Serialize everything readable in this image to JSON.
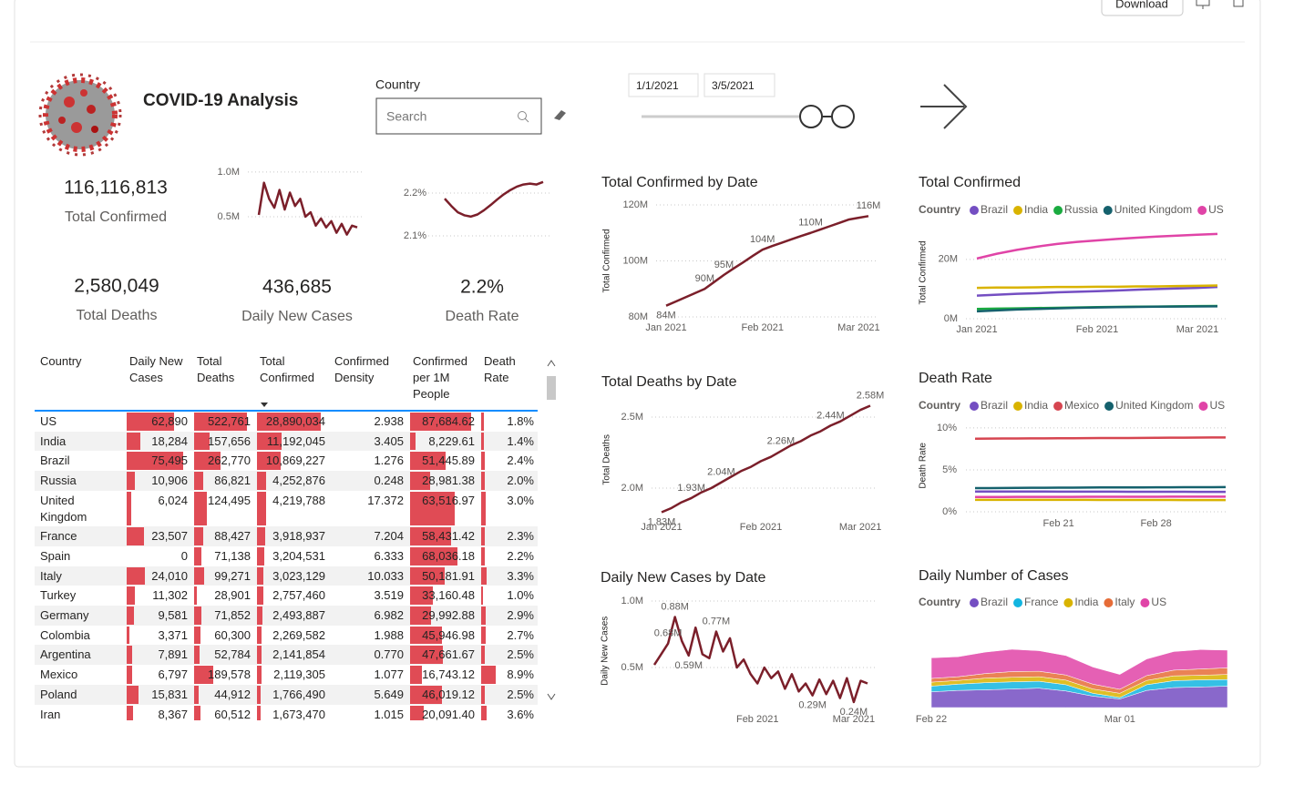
{
  "header": {
    "title": "COVID-19 Analysis",
    "download": "Download"
  },
  "filters": {
    "country_label": "Country",
    "search_placeholder": "Search",
    "start_date": "1/1/2021",
    "end_date": "3/5/2021"
  },
  "kpis": [
    {
      "value": "116,116,813",
      "label": "Total Confirmed"
    },
    {
      "value": "2,580,049",
      "label": "Total Deaths"
    },
    {
      "value": "436,685",
      "label": "Daily New Cases"
    },
    {
      "value": "2.2%",
      "label": "Death Rate"
    }
  ],
  "table": {
    "columns": [
      "Country",
      "Daily New Cases",
      "Total Deaths",
      "Total Confirmed",
      "Confirmed Density",
      "Confirmed per 1M People",
      "Death Rate"
    ],
    "rows": [
      [
        "US",
        "62,890",
        "522,761",
        "28,890,034",
        "2.938",
        "87,684.62",
        "1.8%"
      ],
      [
        "India",
        "18,284",
        "157,656",
        "11,192,045",
        "3.405",
        "8,229.61",
        "1.4%"
      ],
      [
        "Brazil",
        "75,495",
        "262,770",
        "10,869,227",
        "1.276",
        "51,445.89",
        "2.4%"
      ],
      [
        "Russia",
        "10,906",
        "86,821",
        "4,252,876",
        "0.248",
        "28,981.38",
        "2.0%"
      ],
      [
        "United Kingdom",
        "6,024",
        "124,495",
        "4,219,788",
        "17.372",
        "63,516.97",
        "3.0%"
      ],
      [
        "France",
        "23,507",
        "88,427",
        "3,918,937",
        "7.204",
        "58,431.42",
        "2.3%"
      ],
      [
        "Spain",
        "0",
        "71,138",
        "3,204,531",
        "6.333",
        "68,036.18",
        "2.2%"
      ],
      [
        "Italy",
        "24,010",
        "99,271",
        "3,023,129",
        "10.033",
        "50,181.91",
        "3.3%"
      ],
      [
        "Turkey",
        "11,302",
        "28,901",
        "2,757,460",
        "3.519",
        "33,160.48",
        "1.0%"
      ],
      [
        "Germany",
        "9,581",
        "71,852",
        "2,493,887",
        "6.982",
        "29,992.88",
        "2.9%"
      ],
      [
        "Colombia",
        "3,371",
        "60,300",
        "2,269,582",
        "1.988",
        "45,946.98",
        "2.7%"
      ],
      [
        "Argentina",
        "7,891",
        "52,784",
        "2,141,854",
        "0.770",
        "47,661.67",
        "2.5%"
      ],
      [
        "Mexico",
        "6,797",
        "189,578",
        "2,119,305",
        "1.077",
        "16,743.12",
        "8.9%"
      ],
      [
        "Poland",
        "15,831",
        "44,912",
        "1,766,490",
        "5.649",
        "46,019.12",
        "2.5%"
      ],
      [
        "Iran",
        "8,367",
        "60,512",
        "1,673,470",
        "1.015",
        "20,091.40",
        "3.6%"
      ]
    ]
  },
  "chart_data": [
    {
      "type": "line",
      "color": "#7b1f2a",
      "values": [
        0.52,
        0.88,
        0.7,
        0.6,
        0.8,
        0.58,
        0.77,
        0.62,
        0.7,
        0.5,
        0.55,
        0.4,
        0.48,
        0.38,
        0.45,
        0.32,
        0.42,
        0.3,
        0.4,
        0.38
      ],
      "ylim": [
        0.25,
        1.05
      ],
      "yticks": [
        {
          "value": 1,
          "label": "1.0M"
        },
        {
          "value": 0.5,
          "label": "0.5M"
        }
      ],
      "grid": true
    },
    {
      "type": "line",
      "color": "#7b1f2a",
      "values": [
        2.187,
        2.17,
        2.155,
        2.148,
        2.145,
        2.15,
        2.16,
        2.172,
        2.185,
        2.197,
        2.207,
        2.215,
        2.22,
        2.222,
        2.22,
        2.226
      ],
      "ylim": [
        2.09,
        2.24
      ],
      "yticks": [
        {
          "value": 2.2,
          "label": "2.2%"
        },
        {
          "value": 2.1,
          "label": "2.1%"
        }
      ],
      "grid": true
    },
    {
      "type": "line",
      "title": "Total Confirmed by Date",
      "y_label": "Total Confirmed",
      "color": "#7b1f2a",
      "categories": [
        "Jan 2021",
        null,
        null,
        null,
        null,
        null,
        null,
        null,
        null,
        null,
        "Feb 2021",
        null,
        null,
        null,
        null,
        null,
        null,
        null,
        null,
        null,
        "Mar 2021",
        null
      ],
      "values": [
        84,
        85.5,
        87,
        88.5,
        90,
        92.5,
        95,
        97.3,
        99.5,
        101.8,
        104,
        105.3,
        106.5,
        107.7,
        108.9,
        110,
        111.2,
        112.4,
        113.6,
        114.8,
        115.4,
        116
      ],
      "value_labels": [
        "84M",
        null,
        null,
        null,
        "90M",
        null,
        "95M",
        null,
        null,
        null,
        "104M",
        null,
        null,
        null,
        null,
        "110M",
        null,
        null,
        null,
        null,
        null,
        "116M"
      ],
      "ylim": [
        80,
        120
      ],
      "yticks": [
        {
          "value": 120,
          "label": "120M"
        },
        {
          "value": 100,
          "label": "100M"
        },
        {
          "value": 80,
          "label": "80M"
        }
      ],
      "grid": true
    },
    {
      "type": "line",
      "title": "Total Deaths by Date",
      "y_label": "Total Deaths",
      "color": "#7b1f2a",
      "categories": [
        "Jan 2021",
        null,
        null,
        null,
        null,
        null,
        null,
        null,
        null,
        null,
        "Feb 2021",
        null,
        null,
        null,
        null,
        null,
        null,
        null,
        null,
        null,
        "Mar 2021",
        null
      ],
      "values": [
        1.83,
        1.86,
        1.9,
        1.93,
        1.97,
        2.0,
        2.04,
        2.08,
        2.12,
        2.15,
        2.19,
        2.22,
        2.26,
        2.3,
        2.33,
        2.37,
        2.4,
        2.44,
        2.47,
        2.51,
        2.55,
        2.58
      ],
      "value_labels": [
        "1.83M",
        null,
        null,
        "1.93M",
        null,
        null,
        "2.04M",
        null,
        null,
        null,
        null,
        null,
        "2.26M",
        null,
        null,
        null,
        null,
        "2.44M",
        null,
        null,
        null,
        "2.58M"
      ],
      "ylim": [
        1.8,
        2.6
      ],
      "yticks": [
        {
          "value": 2.5,
          "label": "2.5M"
        },
        {
          "value": 2,
          "label": "2.0M"
        }
      ],
      "grid": true
    },
    {
      "type": "line",
      "title": "Daily New Cases by Date",
      "y_label": "Daily New Cases",
      "color": "#7b1f2a",
      "categories": [
        null,
        null,
        null,
        null,
        null,
        null,
        null,
        null,
        null,
        null,
        null,
        null,
        null,
        null,
        null,
        "Feb 2021",
        null,
        null,
        null,
        null,
        null,
        null,
        null,
        null,
        null,
        null,
        null,
        null,
        null,
        "Mar 2021",
        null,
        null
      ],
      "values": [
        0.52,
        0.6,
        0.68,
        0.88,
        0.7,
        0.59,
        0.8,
        0.6,
        0.57,
        0.77,
        0.62,
        0.72,
        0.5,
        0.56,
        0.45,
        0.38,
        0.5,
        0.42,
        0.47,
        0.34,
        0.45,
        0.32,
        0.38,
        0.29,
        0.41,
        0.3,
        0.4,
        0.27,
        0.42,
        0.24,
        0.4,
        0.38
      ],
      "value_labels": [
        null,
        null,
        "0.68M",
        "0.88M",
        null,
        "0.59M",
        null,
        null,
        null,
        "0.77M",
        null,
        null,
        null,
        null,
        null,
        null,
        null,
        null,
        null,
        null,
        null,
        null,
        null,
        "0.29M",
        null,
        null,
        null,
        null,
        null,
        "0.24M",
        null,
        null
      ],
      "ylim": [
        0.2,
        1.05
      ],
      "yticks": [
        {
          "value": 1,
          "label": "1.0M"
        },
        {
          "value": 0.5,
          "label": "0.5M"
        }
      ],
      "grid": true
    },
    {
      "type": "line",
      "title": "Total Confirmed",
      "y_label": "Total Confirmed",
      "legend_title": "Country",
      "categories": [
        "Jan 2021",
        null,
        null,
        null,
        null,
        null,
        "Feb 2021",
        null,
        null,
        null,
        null,
        "Mar 2021",
        null
      ],
      "series": [
        {
          "name": "Brazil",
          "color": "#744ec2",
          "values": [
            7.8,
            8.1,
            8.4,
            8.6,
            8.9,
            9.1,
            9.3,
            9.5,
            9.8,
            10.0,
            10.2,
            10.4,
            10.7
          ]
        },
        {
          "name": "India",
          "color": "#d9b300",
          "values": [
            10.4,
            10.5,
            10.5,
            10.6,
            10.7,
            10.7,
            10.8,
            10.8,
            10.9,
            10.9,
            11.0,
            11.1,
            11.2
          ]
        },
        {
          "name": "Russia",
          "color": "#1aab40",
          "values": [
            3.3,
            3.4,
            3.5,
            3.6,
            3.7,
            3.8,
            3.9,
            4.0,
            4.05,
            4.1,
            4.2,
            4.25,
            4.3
          ]
        },
        {
          "name": "United Kingdom",
          "color": "#15616d",
          "values": [
            2.5,
            2.8,
            3.1,
            3.3,
            3.5,
            3.7,
            3.8,
            3.9,
            4.0,
            4.05,
            4.1,
            4.15,
            4.2
          ]
        },
        {
          "name": "US",
          "color": "#e044a7",
          "values": [
            20.3,
            21.9,
            23.2,
            24.3,
            25.2,
            25.9,
            26.4,
            26.9,
            27.3,
            27.7,
            28.0,
            28.3,
            28.6
          ]
        }
      ],
      "ylim": [
        0,
        31
      ],
      "yticks": [
        {
          "value": 20,
          "label": "20M"
        },
        {
          "value": 0,
          "label": "0M"
        }
      ],
      "grid": true
    },
    {
      "type": "line",
      "title": "Death Rate",
      "y_label": "Death Rate",
      "legend_title": "Country",
      "categories": [
        null,
        null,
        null,
        null,
        null,
        null,
        "Feb 21",
        null,
        null,
        null,
        null,
        null,
        null,
        "Feb 28",
        null,
        null,
        null,
        null,
        null
      ],
      "series": [
        {
          "name": "Brazil",
          "color": "#744ec2",
          "values": [
            2.42,
            2.42,
            2.41,
            2.41,
            2.41,
            2.41,
            2.4,
            2.4,
            2.4,
            2.4,
            2.4,
            2.39,
            2.39,
            2.39,
            2.39,
            2.39,
            2.38,
            2.38,
            2.38
          ]
        },
        {
          "name": "India",
          "color": "#d9b300",
          "values": [
            1.43,
            1.43,
            1.43,
            1.42,
            1.42,
            1.42,
            1.42,
            1.42,
            1.42,
            1.41,
            1.41,
            1.41,
            1.41,
            1.41,
            1.41,
            1.4,
            1.4,
            1.4,
            1.4
          ]
        },
        {
          "name": "Mexico",
          "color": "#d64550",
          "values": [
            8.72,
            8.73,
            8.74,
            8.74,
            8.75,
            8.76,
            8.77,
            8.77,
            8.78,
            8.79,
            8.8,
            8.8,
            8.81,
            8.82,
            8.83,
            8.84,
            8.85,
            8.86,
            8.87
          ]
        },
        {
          "name": "United Kingdom",
          "color": "#15616d",
          "values": [
            2.82,
            2.83,
            2.84,
            2.85,
            2.86,
            2.87,
            2.88,
            2.88,
            2.89,
            2.9,
            2.9,
            2.91,
            2.91,
            2.92,
            2.92,
            2.93,
            2.93,
            2.93,
            2.94
          ]
        },
        {
          "name": "US",
          "color": "#e044a7",
          "values": [
            1.77,
            1.77,
            1.77,
            1.78,
            1.78,
            1.78,
            1.78,
            1.78,
            1.79,
            1.79,
            1.79,
            1.79,
            1.79,
            1.79,
            1.8,
            1.8,
            1.8,
            1.8,
            1.8
          ]
        }
      ],
      "ylim": [
        0,
        11
      ],
      "yticks": [
        {
          "value": 10,
          "label": "10%"
        },
        {
          "value": 5,
          "label": "5%"
        },
        {
          "value": 0,
          "label": "0%"
        }
      ],
      "grid": true
    },
    {
      "type": "area",
      "title": "Daily Number of Cases",
      "legend_title": "Country",
      "stacked": true,
      "categories": [
        "Feb 22",
        null,
        null,
        null,
        null,
        null,
        null,
        "Mar 01",
        null,
        null,
        null,
        null
      ],
      "series": [
        {
          "name": "Brazil",
          "color": "#744ec2",
          "values": [
            55000,
            60000,
            62000,
            65000,
            68000,
            58000,
            40000,
            30000,
            60000,
            70000,
            72000,
            75000
          ]
        },
        {
          "name": "France",
          "color": "#12b5e0",
          "values": [
            20000,
            22000,
            25000,
            25000,
            24000,
            22000,
            10000,
            5000,
            20000,
            24000,
            25000,
            23000
          ]
        },
        {
          "name": "India",
          "color": "#d9b300",
          "values": [
            14000,
            13000,
            16000,
            16000,
            16000,
            16000,
            15000,
            15000,
            15000,
            17000,
            16000,
            18000
          ]
        },
        {
          "name": "Italy",
          "color": "#e66c37",
          "values": [
            13000,
            13000,
            16000,
            20000,
            19000,
            18000,
            17000,
            14000,
            17000,
            20000,
            22000,
            23000
          ]
        },
        {
          "name": "US",
          "color": "#e044a7",
          "values": [
            72000,
            70000,
            75000,
            78000,
            72000,
            68000,
            60000,
            52000,
            58000,
            65000,
            68000,
            62000
          ]
        }
      ]
    }
  ]
}
